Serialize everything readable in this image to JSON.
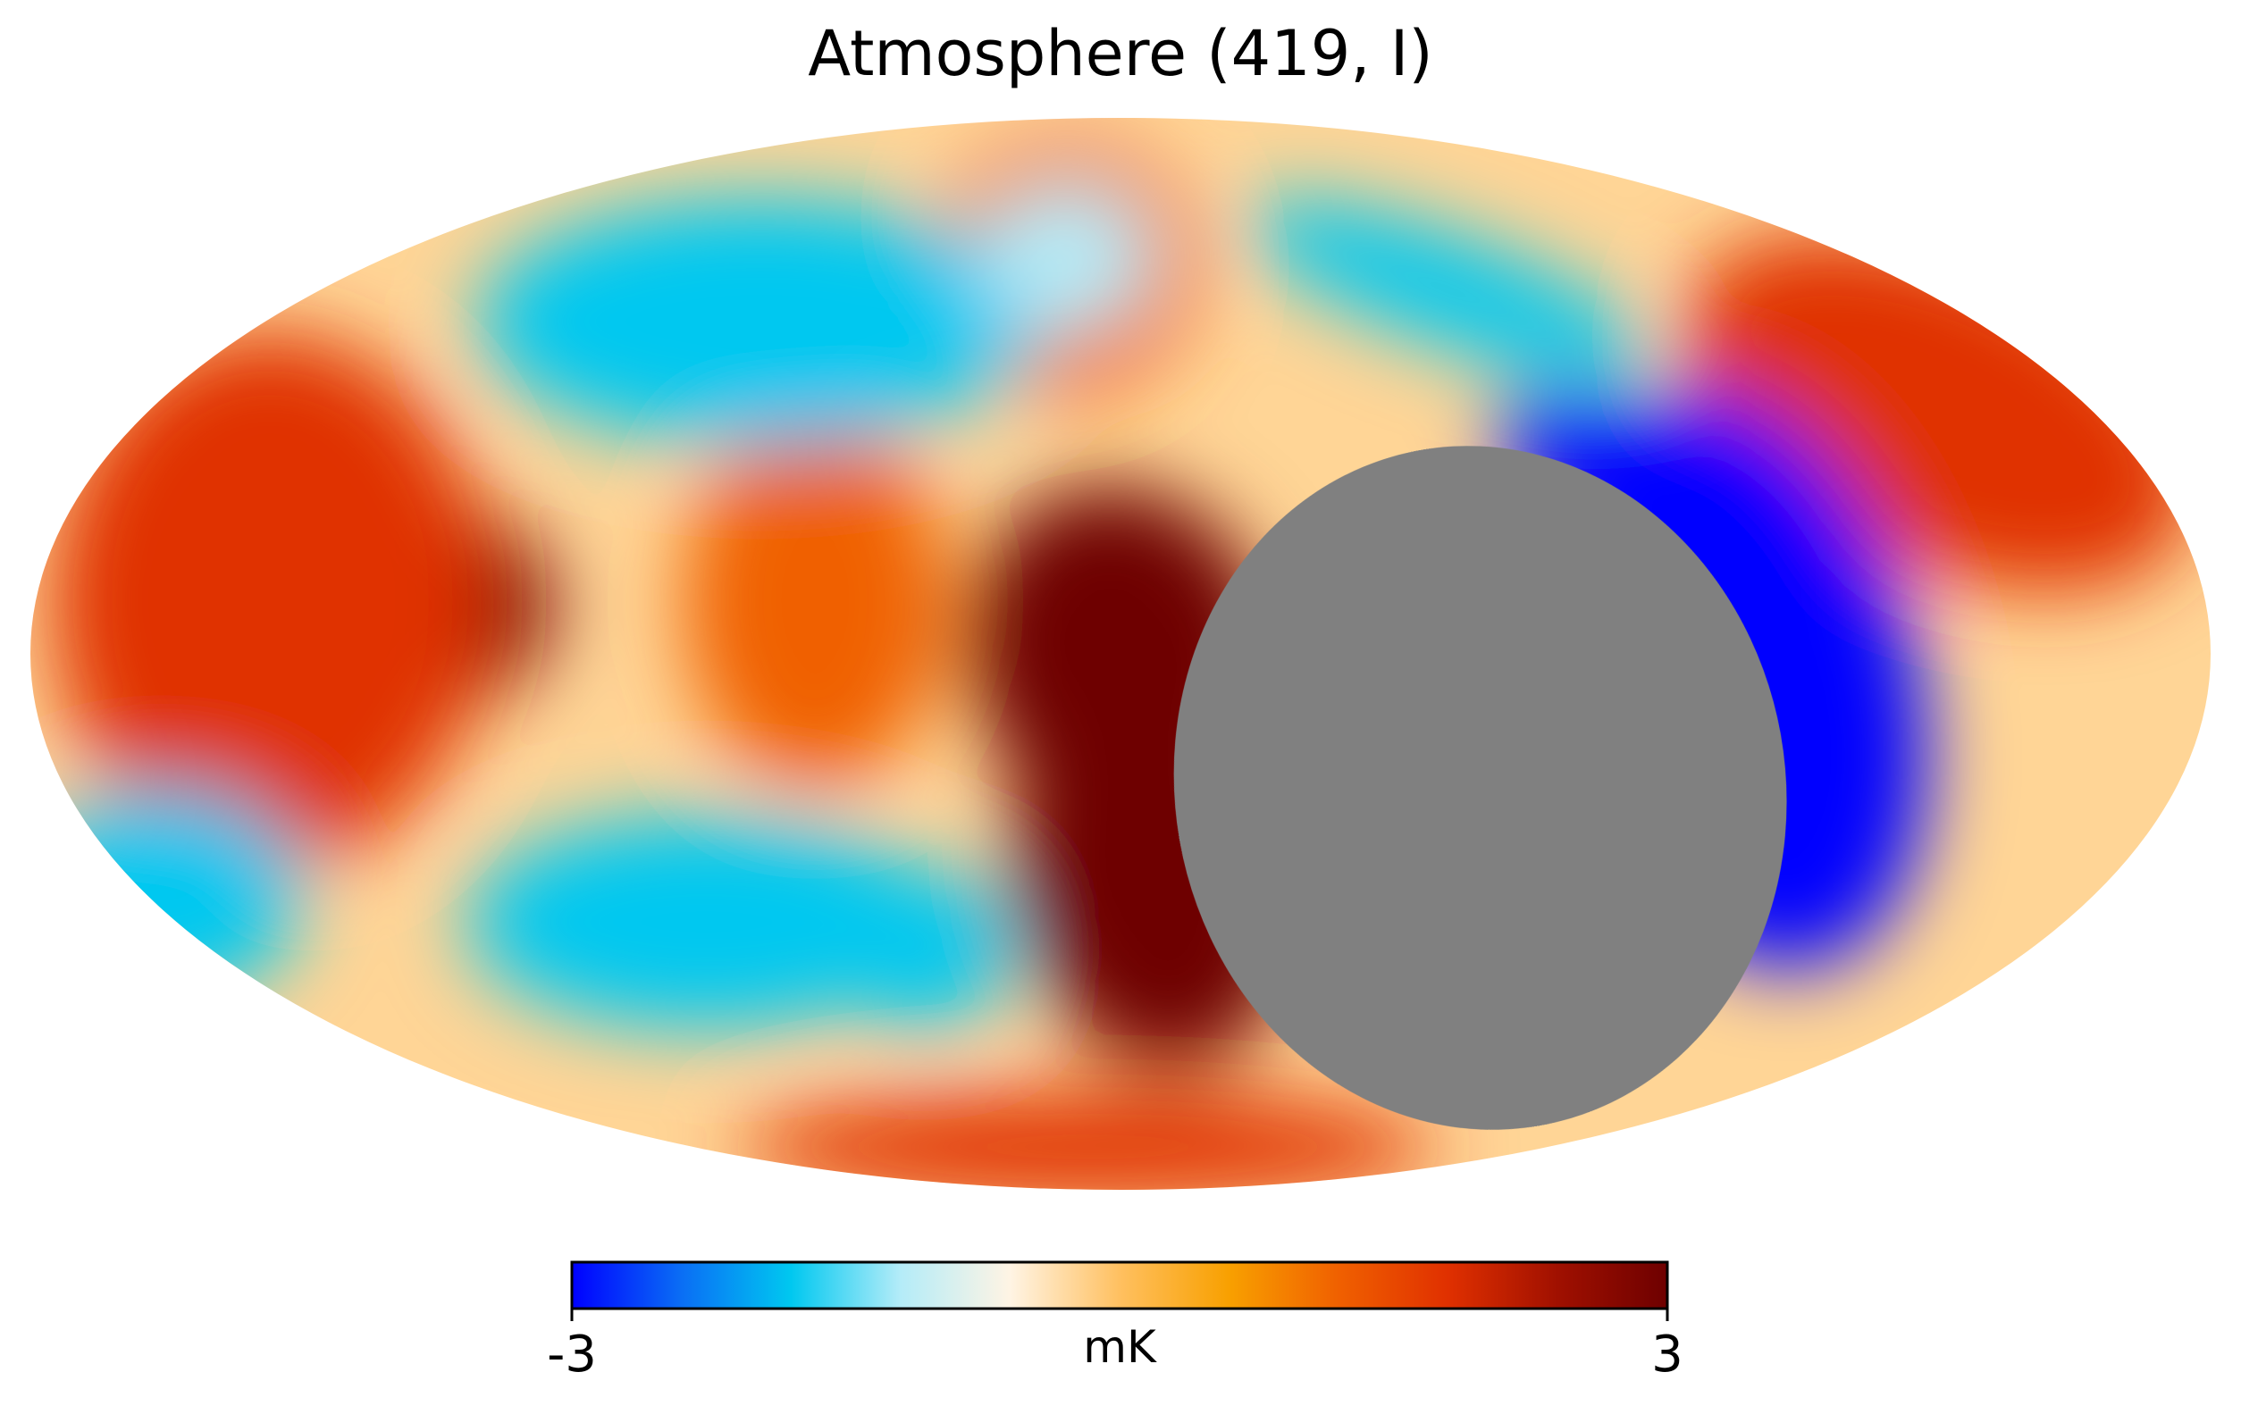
{
  "chart_data": {
    "type": "heatmap",
    "projection": "mollweide",
    "title": "Atmosphere (419, I)",
    "colorbar": {
      "label": "mK",
      "min": -3,
      "max": 3,
      "min_label": "-3",
      "max_label": "3",
      "orientation": "horizontal",
      "placement": "bottom"
    },
    "masked_region_color": "#808080",
    "colormap_stops": [
      "#0000ff",
      "#0a6ef5",
      "#00c8f0",
      "#b4ecf8",
      "#fff4e4",
      "#ffc060",
      "#f8a000",
      "#f06000",
      "#e03000",
      "#a01000",
      "#6e0000"
    ],
    "features": [
      {
        "type": "masked",
        "shape": "ellipse",
        "cx": 0.33,
        "cy": -0.25,
        "rx": 0.28,
        "ry": 0.64,
        "rotation": 10
      },
      {
        "type": "warm",
        "value": 3,
        "cx": 0.0,
        "cy": 0.0,
        "rx": 0.14,
        "ry": 0.32,
        "rotation": 20
      },
      {
        "type": "warm",
        "value": 3,
        "cx": 0.03,
        "cy": -0.42,
        "rx": 0.13,
        "ry": 0.36,
        "rotation": 12
      },
      {
        "type": "warm",
        "value": 3,
        "cx": -0.68,
        "cy": 0.09,
        "rx": 0.16,
        "ry": 0.22,
        "rotation": 0
      },
      {
        "type": "warm",
        "value": 2,
        "cx": -0.78,
        "cy": 0.1,
        "rx": 0.2,
        "ry": 0.5,
        "rotation": 0
      },
      {
        "type": "warm",
        "value": 2,
        "cx": 0.75,
        "cy": 0.45,
        "rx": 0.25,
        "ry": 0.28,
        "rotation": -25
      },
      {
        "type": "warm",
        "value": 1.6,
        "cx": -0.03,
        "cy": -0.92,
        "rx": 0.32,
        "ry": 0.1,
        "rotation": 0
      },
      {
        "type": "warm",
        "value": 1.3,
        "cx": -0.28,
        "cy": 0.1,
        "rx": 0.12,
        "ry": 0.35,
        "rotation": 0
      },
      {
        "type": "warm",
        "value": 1.2,
        "cx": -0.05,
        "cy": 0.72,
        "rx": 0.12,
        "ry": 0.24,
        "rotation": 25
      },
      {
        "type": "cold",
        "value": -3,
        "cx": 0.57,
        "cy": -0.05,
        "rx": 0.16,
        "ry": 0.55,
        "rotation": 15
      },
      {
        "type": "cold",
        "value": -3,
        "cx": 0.48,
        "cy": 0.3,
        "rx": 0.15,
        "ry": 0.13,
        "rotation": -30
      },
      {
        "type": "cold",
        "value": -2.1,
        "cx": 0.3,
        "cy": 0.68,
        "rx": 0.2,
        "ry": 0.1,
        "rotation": -20
      },
      {
        "type": "cold",
        "value": -1.6,
        "cx": -0.33,
        "cy": 0.62,
        "rx": 0.26,
        "ry": 0.23,
        "rotation": 0
      },
      {
        "type": "cold",
        "value": -1.2,
        "cx": -0.05,
        "cy": 0.74,
        "rx": 0.08,
        "ry": 0.14,
        "rotation": 0
      },
      {
        "type": "cold",
        "value": -1.6,
        "cx": -0.38,
        "cy": -0.5,
        "rx": 0.22,
        "ry": 0.2,
        "rotation": 0
      },
      {
        "type": "cold",
        "value": -2.1,
        "cx": -0.18,
        "cy": -0.55,
        "rx": 0.08,
        "ry": 0.15,
        "rotation": 0
      },
      {
        "type": "cold",
        "value": -1.6,
        "cx": -0.88,
        "cy": -0.45,
        "rx": 0.13,
        "ry": 0.2,
        "rotation": 0
      }
    ]
  }
}
